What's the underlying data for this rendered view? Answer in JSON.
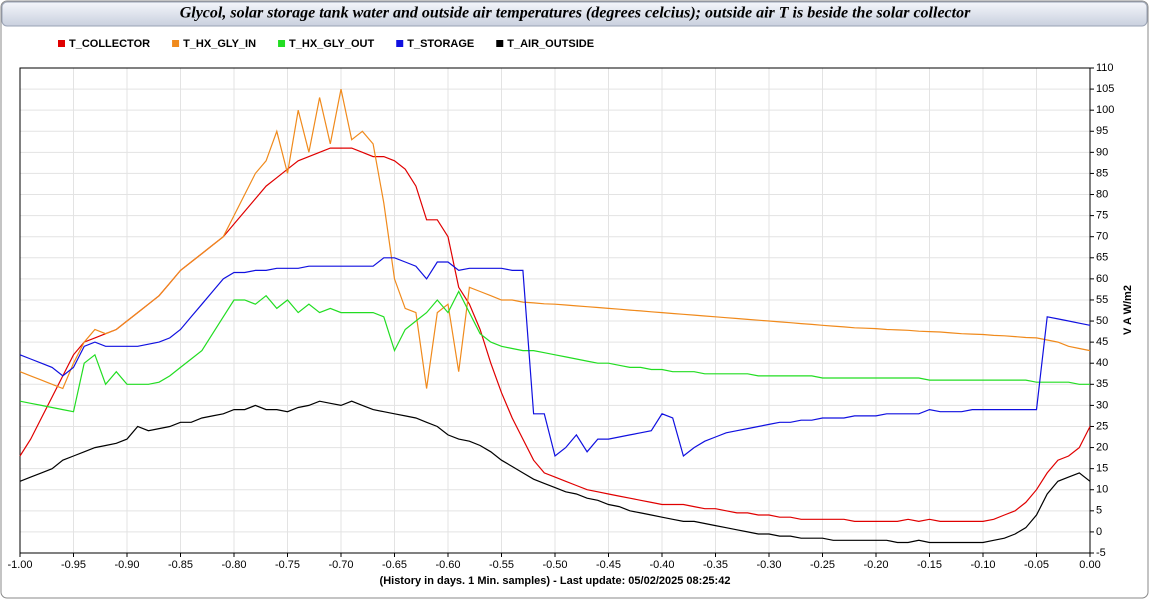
{
  "chart_data": {
    "type": "line",
    "title": "Glycol, solar storage tank water and outside air temperatures (degrees celcius); outside air T is beside the solar collector",
    "x_label": "(History in days. 1 Min. samples) - Last update: 05/02/2025 08:25:42",
    "y_label": "V A W/m2",
    "grid": true,
    "legend": "top-left",
    "x": [
      -1,
      -0.99,
      -0.98,
      -0.97,
      -0.96,
      -0.95,
      -0.94,
      -0.93,
      -0.92,
      -0.91,
      -0.9,
      -0.89,
      -0.88,
      -0.87,
      -0.86,
      -0.85,
      -0.84,
      -0.83,
      -0.82,
      -0.81,
      -0.8,
      -0.79,
      -0.78,
      -0.77,
      -0.76,
      -0.75,
      -0.74,
      -0.73,
      -0.72,
      -0.71,
      -0.7,
      -0.69,
      -0.68,
      -0.67,
      -0.66,
      -0.65,
      -0.64,
      -0.63,
      -0.62,
      -0.61,
      -0.6,
      -0.59,
      -0.58,
      -0.57,
      -0.56,
      -0.55,
      -0.54,
      -0.53,
      -0.52,
      -0.51,
      -0.5,
      -0.49,
      -0.48,
      -0.47,
      -0.46,
      -0.45,
      -0.44,
      -0.43,
      -0.42,
      -0.41,
      -0.4,
      -0.39,
      -0.38,
      -0.37,
      -0.36,
      -0.35,
      -0.34,
      -0.33,
      -0.32,
      -0.31,
      -0.3,
      -0.29,
      -0.28,
      -0.27,
      -0.26,
      -0.25,
      -0.24,
      -0.23,
      -0.22,
      -0.21,
      -0.2,
      -0.19,
      -0.18,
      -0.17,
      -0.16,
      -0.15,
      -0.14,
      -0.13,
      -0.12,
      -0.11,
      -0.1,
      -0.09,
      -0.08,
      -0.07,
      -0.06,
      -0.05,
      -0.04,
      -0.03,
      -0.02,
      -0.01,
      0
    ],
    "series": [
      {
        "name": "T_COLLECTOR",
        "color": "#e00000",
        "values": [
          18,
          22,
          27,
          32,
          37,
          42,
          45,
          46,
          47,
          48,
          50,
          52,
          54,
          56,
          59,
          62,
          64,
          66,
          68,
          70,
          73,
          76,
          79,
          82,
          84,
          86,
          88,
          89,
          90,
          91,
          91,
          91,
          90,
          89,
          89,
          88,
          86,
          82,
          74,
          74,
          70,
          58,
          54,
          48,
          40,
          33,
          27,
          22,
          17,
          14,
          13,
          12,
          11,
          10,
          9.5,
          9,
          8.5,
          8,
          7.5,
          7,
          6.5,
          6.5,
          6.5,
          6,
          5.5,
          5.5,
          5,
          4.5,
          4.5,
          4,
          4,
          3.5,
          3.5,
          3,
          3,
          3,
          3,
          3,
          2.5,
          2.5,
          2.5,
          2.5,
          2.5,
          3,
          2.5,
          3,
          2.5,
          2.5,
          2.5,
          2.5,
          2.5,
          3,
          4,
          5,
          7,
          10,
          14,
          17,
          18,
          20,
          25
        ]
      },
      {
        "name": "T_HX_GLY_IN",
        "color": "#f08a1c",
        "values": [
          38,
          37,
          36,
          35,
          34,
          40,
          45,
          48,
          47,
          48,
          50,
          52,
          54,
          56,
          59,
          62,
          64,
          66,
          68,
          70,
          75,
          80,
          85,
          88,
          95,
          85,
          100,
          90,
          103,
          92,
          105,
          93,
          95,
          92,
          78,
          60,
          53,
          52,
          34,
          52,
          54,
          38,
          58,
          57,
          56,
          55,
          55,
          54.5,
          54.3,
          54.1,
          54,
          53.8,
          53.6,
          53.4,
          53.2,
          53,
          52.8,
          52.6,
          52.4,
          52.2,
          52,
          51.8,
          51.6,
          51.4,
          51.2,
          51,
          50.8,
          50.6,
          50.4,
          50.2,
          50,
          49.8,
          49.6,
          49.4,
          49.2,
          49,
          48.8,
          48.6,
          48.4,
          48.3,
          48.2,
          48,
          47.9,
          47.8,
          47.6,
          47.5,
          47.4,
          47.2,
          47,
          46.9,
          46.8,
          46.6,
          46.5,
          46.3,
          46.1,
          46,
          45.5,
          45,
          44,
          43.5,
          43
        ]
      },
      {
        "name": "T_HX_GLY_OUT",
        "color": "#22dd22",
        "values": [
          31,
          30.5,
          30,
          29.5,
          29,
          28.5,
          40,
          42,
          35,
          38,
          35,
          35,
          35,
          35.5,
          37,
          39,
          41,
          43,
          47,
          51,
          55,
          55,
          54,
          56,
          53,
          55,
          52,
          54,
          52,
          53,
          52,
          52,
          52,
          52,
          51,
          43,
          48,
          50,
          52,
          55,
          52,
          57,
          52,
          47,
          45,
          44,
          43.5,
          43,
          43,
          42.5,
          42,
          41.5,
          41,
          40.5,
          40,
          40,
          39.5,
          39,
          39,
          38.5,
          38.5,
          38,
          38,
          38,
          37.5,
          37.5,
          37.5,
          37.5,
          37.5,
          37,
          37,
          37,
          37,
          37,
          37,
          36.5,
          36.5,
          36.5,
          36.5,
          36.5,
          36.5,
          36.5,
          36.5,
          36.5,
          36.5,
          36,
          36,
          36,
          36,
          36,
          36,
          36,
          36,
          36,
          36,
          35.5,
          35.5,
          35.5,
          35.5,
          35,
          35
        ]
      },
      {
        "name": "T_STORAGE",
        "color": "#1010e0",
        "values": [
          42,
          41,
          40,
          39,
          37,
          39,
          44,
          45,
          44,
          44,
          44,
          44,
          44.5,
          45,
          46,
          48,
          51,
          54,
          57,
          60,
          61.5,
          61.5,
          62,
          62,
          62.5,
          62.5,
          62.5,
          63,
          63,
          63,
          63,
          63,
          63,
          63,
          65,
          65,
          64,
          63,
          60,
          64,
          64,
          62,
          62.5,
          62.5,
          62.5,
          62.5,
          62,
          62,
          28,
          28,
          18,
          20,
          23,
          19,
          22,
          22,
          22.5,
          23,
          23.5,
          24,
          28,
          27,
          18,
          20,
          21.5,
          22.5,
          23.5,
          24,
          24.5,
          25,
          25.5,
          26,
          26,
          26.5,
          26.5,
          27,
          27,
          27,
          27.5,
          27.5,
          27.5,
          28,
          28,
          28,
          28,
          29,
          28.5,
          28.5,
          28.5,
          29,
          29,
          29,
          29,
          29,
          29,
          29,
          51,
          50.5,
          50,
          49.5,
          49
        ]
      },
      {
        "name": "T_AIR_OUTSIDE",
        "color": "#000000",
        "values": [
          12,
          13,
          14,
          15,
          17,
          18,
          19,
          20,
          20.5,
          21,
          22,
          25,
          24,
          24.5,
          25,
          26,
          26,
          27,
          27.5,
          28,
          29,
          29,
          30,
          29,
          29,
          28.5,
          29.5,
          30,
          31,
          30.5,
          30,
          31,
          30,
          29,
          28.5,
          28,
          27.5,
          27,
          26,
          25,
          23,
          22,
          21.5,
          20.5,
          19,
          17,
          15.5,
          14,
          12.5,
          11.5,
          10.5,
          9.5,
          9,
          8,
          7.5,
          6.5,
          6,
          5,
          4.5,
          4,
          3.5,
          3,
          2.5,
          2.5,
          2,
          1.5,
          1,
          0.5,
          0,
          -0.5,
          -0.5,
          -1,
          -1,
          -1.5,
          -1.5,
          -1.5,
          -2,
          -2,
          -2,
          -2,
          -2,
          -2,
          -2.5,
          -2.5,
          -2,
          -2.5,
          -2.5,
          -2.5,
          -2.5,
          -2.5,
          -2.5,
          -2,
          -1.5,
          -0.5,
          1,
          4,
          9,
          12,
          13,
          14,
          12
        ]
      }
    ],
    "xlim": [
      -1,
      0
    ],
    "xticks": [
      {
        "value": -1,
        "label": "-1.00"
      },
      {
        "value": -0.95,
        "label": "-0.95"
      },
      {
        "value": -0.9,
        "label": "-0.90"
      },
      {
        "value": -0.85,
        "label": "-0.85"
      },
      {
        "value": -0.8,
        "label": "-0.80"
      },
      {
        "value": -0.75,
        "label": "-0.75"
      },
      {
        "value": -0.7,
        "label": "-0.70"
      },
      {
        "value": -0.65,
        "label": "-0.65"
      },
      {
        "value": -0.6,
        "label": "-0.60"
      },
      {
        "value": -0.55,
        "label": "-0.55"
      },
      {
        "value": -0.5,
        "label": "-0.50"
      },
      {
        "value": -0.45,
        "label": "-0.45"
      },
      {
        "value": -0.4,
        "label": "-0.40"
      },
      {
        "value": -0.35,
        "label": "-0.35"
      },
      {
        "value": -0.3,
        "label": "-0.30"
      },
      {
        "value": -0.25,
        "label": "-0.25"
      },
      {
        "value": -0.2,
        "label": "-0.20"
      },
      {
        "value": -0.15,
        "label": "-0.15"
      },
      {
        "value": -0.1,
        "label": "-0.10"
      },
      {
        "value": -0.05,
        "label": "-0.05"
      },
      {
        "value": 0,
        "label": "0.00"
      }
    ],
    "ylim": [
      -5,
      110
    ],
    "yticks": [
      -5,
      0,
      5,
      10,
      15,
      20,
      25,
      30,
      35,
      40,
      45,
      50,
      55,
      60,
      65,
      70,
      75,
      80,
      85,
      90,
      95,
      100,
      105,
      110
    ]
  }
}
